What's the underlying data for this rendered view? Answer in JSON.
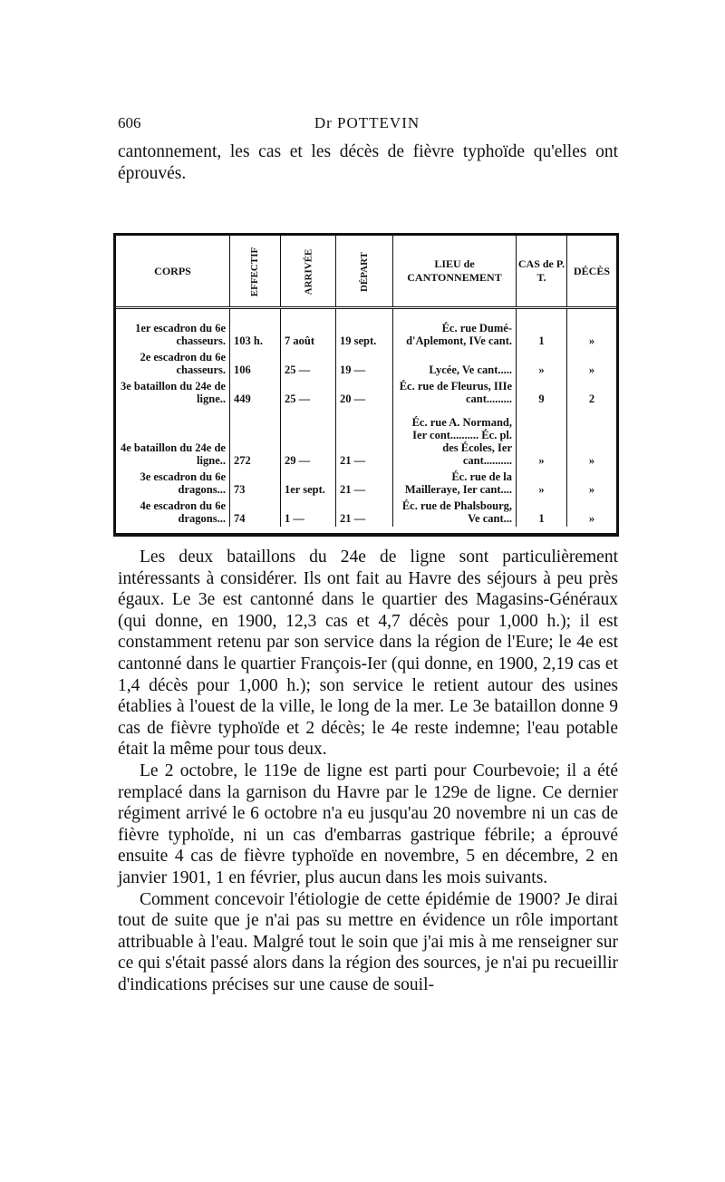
{
  "header": {
    "page_number": "606",
    "running_title": "Dr POTTEVIN"
  },
  "intro": "cantonnement, les cas et les décès de fièvre typhoïde qu'elles ont éprouvés.",
  "table": {
    "headers": [
      "CORPS",
      "EFFECTIF",
      "ARRIVÉE",
      "DÉPART",
      "LIEU de CANTONNEMENT",
      "CAS de P. T.",
      "DÉCÈS"
    ],
    "rows": [
      {
        "corps": "1er escadron du 6e chasseurs.",
        "effectif": "103 h.",
        "arrivee": "7 août",
        "depart": "19 sept.",
        "lieu": "Éc. rue Dumé-d'Aplemont, IVe cant.",
        "cas": "1",
        "deces": "»"
      },
      {
        "corps": "2e escadron du 6e chasseurs.",
        "effectif": "106",
        "arrivee": "25 —",
        "depart": "19 —",
        "lieu": "Lycée, Ve cant.....",
        "cas": "»",
        "deces": "»"
      },
      {
        "corps": "3e bataillon du 24e de ligne..",
        "effectif": "449",
        "arrivee": "25 —",
        "depart": "20 —",
        "lieu": "Éc. rue de Fleurus, IIIe cant.........",
        "cas": "9",
        "deces": "2"
      },
      {
        "corps": "4e bataillon du 24e de ligne..",
        "effectif": "272",
        "arrivee": "29 —",
        "depart": "21 —",
        "lieu": "Éc. rue A. Normand, Ier cont.......... Éc. pl. des Écoles, Ier cant..........",
        "cas": "»",
        "deces": "»"
      },
      {
        "corps": "3e escadron du 6e dragons...",
        "effectif": "73",
        "arrivee": "1er sept.",
        "depart": "21 —",
        "lieu": "Éc. rue de la Mailleraye, Ier cant....",
        "cas": "»",
        "deces": "»"
      },
      {
        "corps": "4e escadron du 6e dragons...",
        "effectif": "74",
        "arrivee": "1 —",
        "depart": "21 —",
        "lieu": "Éc. rue de Phalsbourg, Ve cant...",
        "cas": "1",
        "deces": "»"
      }
    ]
  },
  "paragraphs": [
    "Les deux bataillons du 24e de ligne sont particulièrement intéressants à considérer. Ils ont fait au Havre des séjours à peu près égaux. Le 3e est cantonné dans le quartier des Magasins-Généraux (qui donne, en 1900, 12,3 cas et 4,7 décès pour 1,000 h.); il est constamment retenu par son service dans la région de l'Eure; le 4e est cantonné dans le quartier François-Ier (qui donne, en 1900, 2,19 cas et 1,4 décès pour 1,000 h.); son service le retient autour des usines établies à l'ouest de la ville, le long de la mer. Le 3e bataillon donne 9 cas de fièvre typhoïde et 2 décès; le 4e reste indemne; l'eau potable était la même pour tous deux.",
    "Le 2 octobre, le 119e de ligne est parti pour Courbevoie; il a été remplacé dans la garnison du Havre par le 129e de ligne. Ce dernier régiment arrivé le 6 octobre n'a eu jusqu'au 20 novembre ni un cas de fièvre typhoïde, ni un cas d'embarras gastrique fébrile; a éprouvé ensuite 4 cas de fièvre typhoïde en novembre, 5 en décembre, 2 en janvier 1901, 1 en février, plus aucun dans les mois suivants.",
    "Comment concevoir l'étiologie de cette épidémie de 1900? Je dirai tout de suite que je n'ai pas su mettre en évidence un rôle important attribuable à l'eau. Malgré tout le soin que j'ai mis à me renseigner sur ce qui s'était passé alors dans la région des sources, je n'ai pu recueillir d'indications précises sur une cause de souil-"
  ]
}
